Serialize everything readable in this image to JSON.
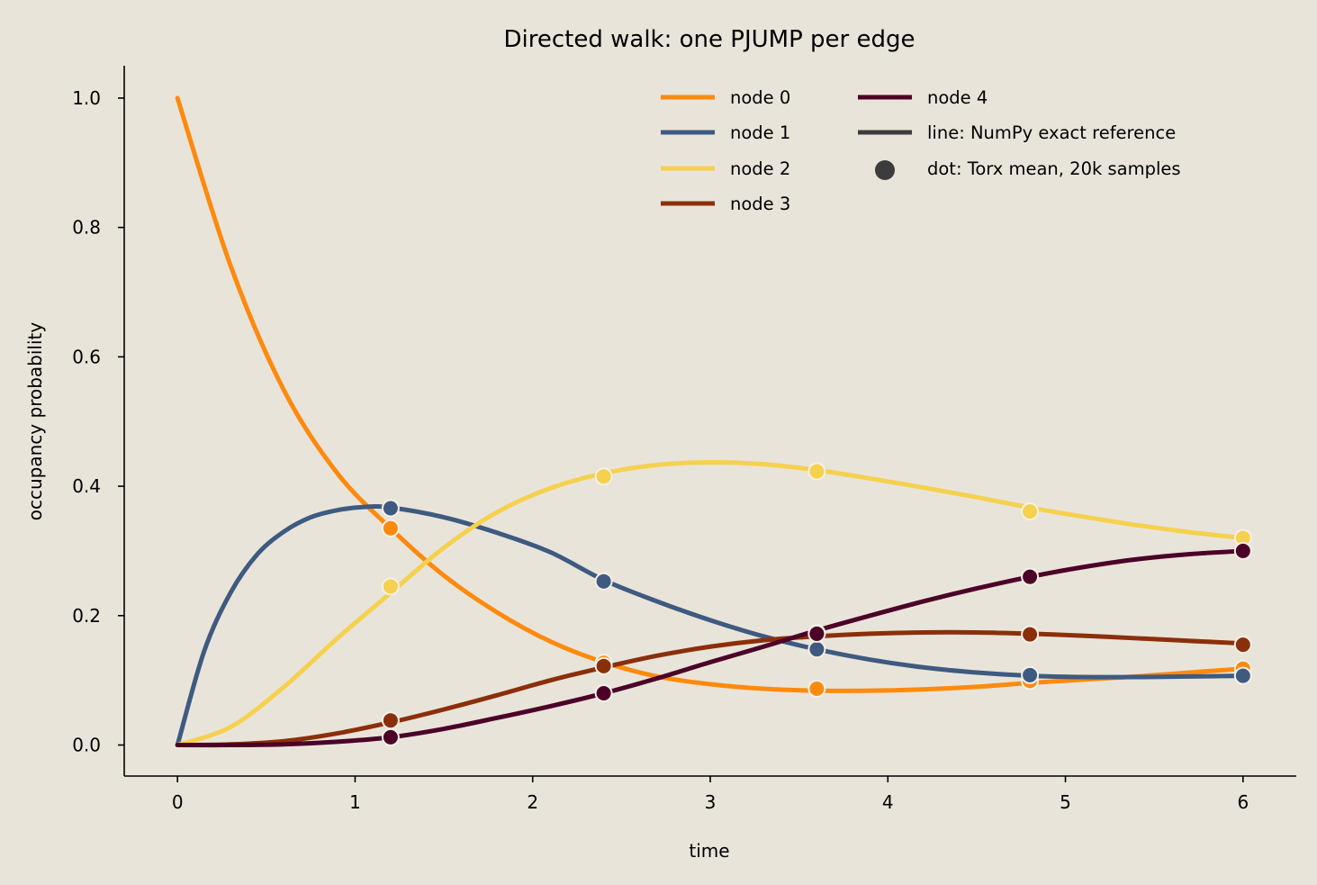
{
  "chart_data": {
    "type": "line",
    "title": "Directed walk: one PJUMP per edge",
    "xlabel": "time",
    "ylabel": "occupancy probability",
    "xlim": [
      -0.3,
      6.3
    ],
    "ylim": [
      -0.048,
      1.05
    ],
    "xticks": [
      0,
      1,
      2,
      3,
      4,
      5,
      6
    ],
    "xtick_labels": [
      "0",
      "1",
      "2",
      "3",
      "4",
      "5",
      "6"
    ],
    "yticks": [
      0.0,
      0.2,
      0.4,
      0.6,
      0.8,
      1.0
    ],
    "ytick_labels": [
      "0.0",
      "0.2",
      "0.4",
      "0.6",
      "0.8",
      "1.0"
    ],
    "grid": false,
    "legend_position": "upper-right",
    "series": [
      {
        "name": "node 0",
        "color": "#ff8a0e",
        "curve_x": [
          0,
          0.3,
          0.6,
          0.9,
          1.2,
          1.5,
          1.8,
          2.1,
          2.4,
          2.7,
          3.0,
          3.3,
          3.6,
          3.9,
          4.2,
          4.5,
          4.8,
          5.1,
          5.4,
          5.7,
          6.0
        ],
        "curve_y": [
          1.0,
          0.74,
          0.548,
          0.42,
          0.335,
          0.262,
          0.205,
          0.16,
          0.128,
          0.106,
          0.094,
          0.087,
          0.084,
          0.084,
          0.086,
          0.09,
          0.096,
          0.101,
          0.106,
          0.112,
          0.118
        ],
        "points_x": [
          1.2,
          2.4,
          3.6,
          4.8,
          6.0
        ],
        "points_y": [
          0.335,
          0.127,
          0.087,
          0.099,
          0.118
        ]
      },
      {
        "name": "node 1",
        "color": "#3e5a80",
        "curve_x": [
          0,
          0.15,
          0.3,
          0.45,
          0.6,
          0.75,
          0.9,
          1.05,
          1.2,
          1.5,
          1.8,
          2.1,
          2.4,
          2.7,
          3.0,
          3.3,
          3.6,
          3.9,
          4.2,
          4.5,
          4.8,
          5.1,
          5.4,
          5.7,
          6.0
        ],
        "curve_y": [
          0.0,
          0.145,
          0.236,
          0.295,
          0.33,
          0.352,
          0.363,
          0.368,
          0.367,
          0.352,
          0.328,
          0.298,
          0.255,
          0.222,
          0.193,
          0.168,
          0.148,
          0.132,
          0.12,
          0.112,
          0.107,
          0.105,
          0.105,
          0.106,
          0.107
        ],
        "points_x": [
          1.2,
          2.4,
          3.6,
          4.8,
          6.0
        ],
        "points_y": [
          0.366,
          0.253,
          0.148,
          0.108,
          0.107
        ]
      },
      {
        "name": "node 2",
        "color": "#f5d14f",
        "curve_x": [
          0,
          0.3,
          0.6,
          0.9,
          1.2,
          1.5,
          1.8,
          2.1,
          2.4,
          2.7,
          3.0,
          3.3,
          3.6,
          3.9,
          4.2,
          4.5,
          4.8,
          5.1,
          5.4,
          5.7,
          6.0
        ],
        "curve_y": [
          0.0,
          0.028,
          0.09,
          0.165,
          0.235,
          0.305,
          0.36,
          0.397,
          0.42,
          0.433,
          0.437,
          0.434,
          0.425,
          0.412,
          0.398,
          0.383,
          0.367,
          0.353,
          0.34,
          0.329,
          0.32
        ],
        "points_x": [
          1.2,
          2.4,
          3.6,
          4.8,
          6.0
        ],
        "points_y": [
          0.245,
          0.415,
          0.423,
          0.361,
          0.32
        ]
      },
      {
        "name": "node 3",
        "color": "#8b2f0a",
        "curve_x": [
          0,
          0.3,
          0.6,
          0.9,
          1.2,
          1.5,
          1.8,
          2.1,
          2.4,
          2.7,
          3.0,
          3.3,
          3.6,
          3.9,
          4.2,
          4.5,
          4.8,
          5.1,
          5.4,
          5.7,
          6.0
        ],
        "curve_y": [
          0.0,
          0.001,
          0.006,
          0.018,
          0.035,
          0.055,
          0.077,
          0.1,
          0.12,
          0.138,
          0.152,
          0.162,
          0.168,
          0.172,
          0.174,
          0.174,
          0.172,
          0.169,
          0.165,
          0.161,
          0.157
        ],
        "points_x": [
          1.2,
          2.4,
          3.6,
          4.8,
          6.0
        ],
        "points_y": [
          0.038,
          0.122,
          0.173,
          0.171,
          0.155
        ]
      },
      {
        "name": "node 4",
        "color": "#4c0027",
        "curve_x": [
          0,
          0.3,
          0.6,
          0.9,
          1.2,
          1.5,
          1.8,
          2.1,
          2.4,
          2.7,
          3.0,
          3.3,
          3.6,
          3.9,
          4.2,
          4.5,
          4.8,
          5.1,
          5.4,
          5.7,
          6.0
        ],
        "curve_y": [
          0.0,
          0.0,
          0.001,
          0.005,
          0.012,
          0.025,
          0.042,
          0.06,
          0.08,
          0.103,
          0.128,
          0.152,
          0.177,
          0.2,
          0.222,
          0.242,
          0.26,
          0.275,
          0.287,
          0.295,
          0.3
        ],
        "points_x": [
          1.2,
          2.4,
          3.6,
          4.8,
          6.0
        ],
        "points_y": [
          0.012,
          0.08,
          0.172,
          0.26,
          0.3
        ]
      }
    ],
    "legend_extra": [
      {
        "label": "line: NumPy exact reference",
        "kind": "line",
        "color": "#3c3c3c"
      },
      {
        "label": "dot: Torx mean, 20k samples",
        "kind": "dot",
        "color": "#3c3c3c"
      }
    ]
  }
}
